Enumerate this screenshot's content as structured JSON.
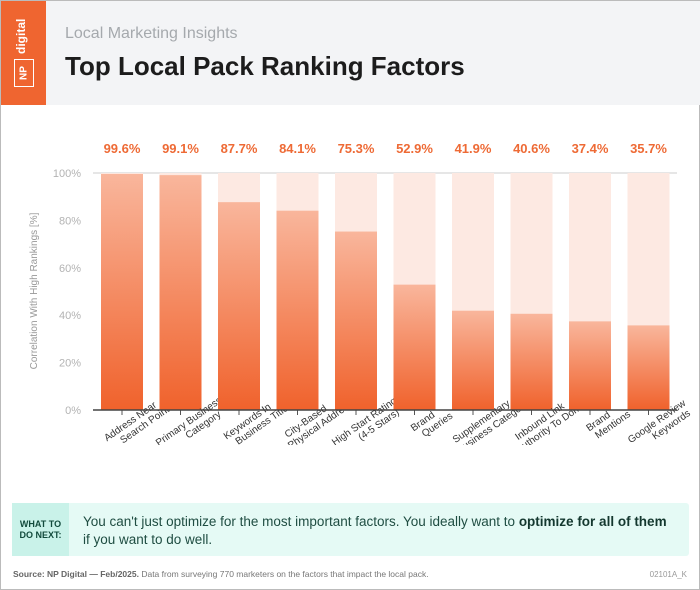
{
  "header": {
    "logo_text": "digital",
    "logo_mark": "NP",
    "subtitle": "Local Marketing Insights",
    "title": "Top Local Pack Ranking Factors"
  },
  "colors": {
    "brand": "#ef6530",
    "bar_top": "#f9b69c",
    "bar_bottom": "#f0622c",
    "bar_track": "#fde9e2",
    "callout_bg": "#e5faf5"
  },
  "chart_data": {
    "type": "bar",
    "title": "Top Local Pack Ranking Factors",
    "ylabel": "Correlation With High Rankings [%]",
    "ylim": [
      0,
      100
    ],
    "yticks": [
      "0%",
      "20%",
      "40%",
      "60%",
      "80%",
      "100%"
    ],
    "categories": [
      [
        "Address Near",
        "Search Point"
      ],
      [
        "Primary Business",
        "Category"
      ],
      [
        "Keywords In",
        "Business Title"
      ],
      [
        "City-Based",
        "Physical Address"
      ],
      [
        "High Start Rating",
        "(4-5 Stars)"
      ],
      [
        "Brand",
        "Queries"
      ],
      [
        "Supplementary",
        "Business Categories"
      ],
      [
        "Inbound Link",
        "Authority To Domain"
      ],
      [
        "Brand",
        "Mentions"
      ],
      [
        "Google Review",
        "Keywords"
      ]
    ],
    "values": [
      99.6,
      99.1,
      87.7,
      84.1,
      75.3,
      52.9,
      41.9,
      40.6,
      37.4,
      35.7
    ],
    "value_labels": [
      "99.6%",
      "99.1%",
      "87.7%",
      "84.1%",
      "75.3%",
      "52.9%",
      "41.9%",
      "40.6%",
      "37.4%",
      "35.7%"
    ],
    "grid": false
  },
  "callout": {
    "label_line1": "WHAT TO",
    "label_line2": "DO NEXT:",
    "text_before": "You can't just optimize for the most important factors. You ideally want to ",
    "text_bold1": "optimize for all of them",
    "text_after": " if you want to do well."
  },
  "footer": {
    "source_bold": "Source: NP Digital — Feb/2025.",
    "source_rest": " Data from surveying 770 marketers on the factors that impact the local pack.",
    "code": "02101A_K"
  }
}
